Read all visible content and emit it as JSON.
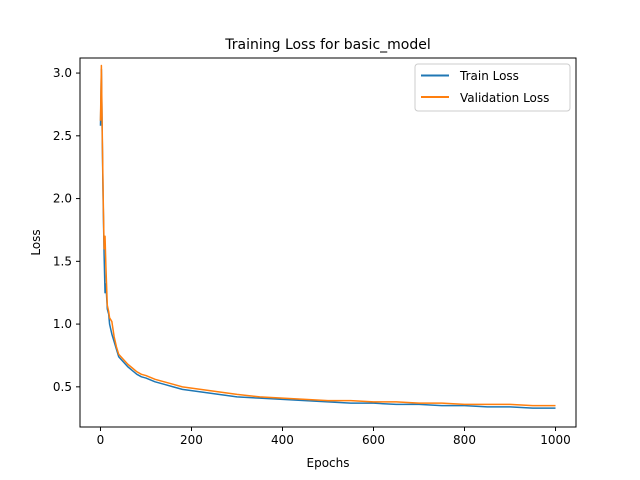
{
  "chart_data": {
    "type": "line",
    "title": "Training Loss for basic_model",
    "xlabel": "Epochs",
    "ylabel": "Loss",
    "xlim": [
      -45,
      1045
    ],
    "ylim": [
      0.18,
      3.12
    ],
    "xticks": [
      0,
      200,
      400,
      600,
      800,
      1000
    ],
    "yticks": [
      0.5,
      1.0,
      1.5,
      2.0,
      2.5,
      3.0
    ],
    "ytick_labels": [
      "0.5",
      "1.0",
      "1.5",
      "2.0",
      "2.5",
      "3.0"
    ],
    "grid": false,
    "legend_position": "top-right",
    "series": [
      {
        "name": "Train Loss",
        "color": "#1f77b4",
        "x": [
          0,
          2,
          4,
          6,
          8,
          10,
          12,
          15,
          18,
          20,
          25,
          30,
          35,
          40,
          50,
          60,
          70,
          80,
          90,
          100,
          120,
          140,
          160,
          180,
          200,
          220,
          240,
          260,
          280,
          300,
          350,
          400,
          450,
          500,
          550,
          600,
          650,
          700,
          750,
          800,
          850,
          900,
          950,
          1000
        ],
        "values": [
          2.58,
          3.03,
          2.45,
          1.95,
          1.55,
          1.25,
          1.32,
          1.12,
          1.08,
          1.0,
          0.92,
          0.86,
          0.8,
          0.74,
          0.7,
          0.66,
          0.63,
          0.6,
          0.58,
          0.57,
          0.54,
          0.52,
          0.5,
          0.48,
          0.47,
          0.46,
          0.45,
          0.44,
          0.43,
          0.42,
          0.41,
          0.4,
          0.39,
          0.38,
          0.37,
          0.37,
          0.36,
          0.36,
          0.35,
          0.35,
          0.34,
          0.34,
          0.33,
          0.33
        ]
      },
      {
        "name": "Validation Loss",
        "color": "#ff7f0e",
        "x": [
          0,
          2,
          4,
          6,
          8,
          10,
          12,
          15,
          18,
          20,
          25,
          30,
          35,
          40,
          50,
          60,
          70,
          80,
          90,
          100,
          120,
          140,
          160,
          180,
          200,
          220,
          240,
          260,
          280,
          300,
          350,
          400,
          450,
          500,
          550,
          600,
          650,
          700,
          750,
          800,
          850,
          900,
          950,
          1000
        ],
        "values": [
          2.62,
          3.06,
          2.5,
          2.0,
          1.6,
          1.7,
          1.45,
          1.15,
          1.1,
          1.05,
          1.02,
          0.9,
          0.82,
          0.76,
          0.72,
          0.68,
          0.65,
          0.62,
          0.6,
          0.59,
          0.56,
          0.54,
          0.52,
          0.5,
          0.49,
          0.48,
          0.47,
          0.46,
          0.45,
          0.44,
          0.42,
          0.41,
          0.4,
          0.39,
          0.39,
          0.38,
          0.38,
          0.37,
          0.37,
          0.36,
          0.36,
          0.36,
          0.35,
          0.35
        ]
      }
    ]
  }
}
